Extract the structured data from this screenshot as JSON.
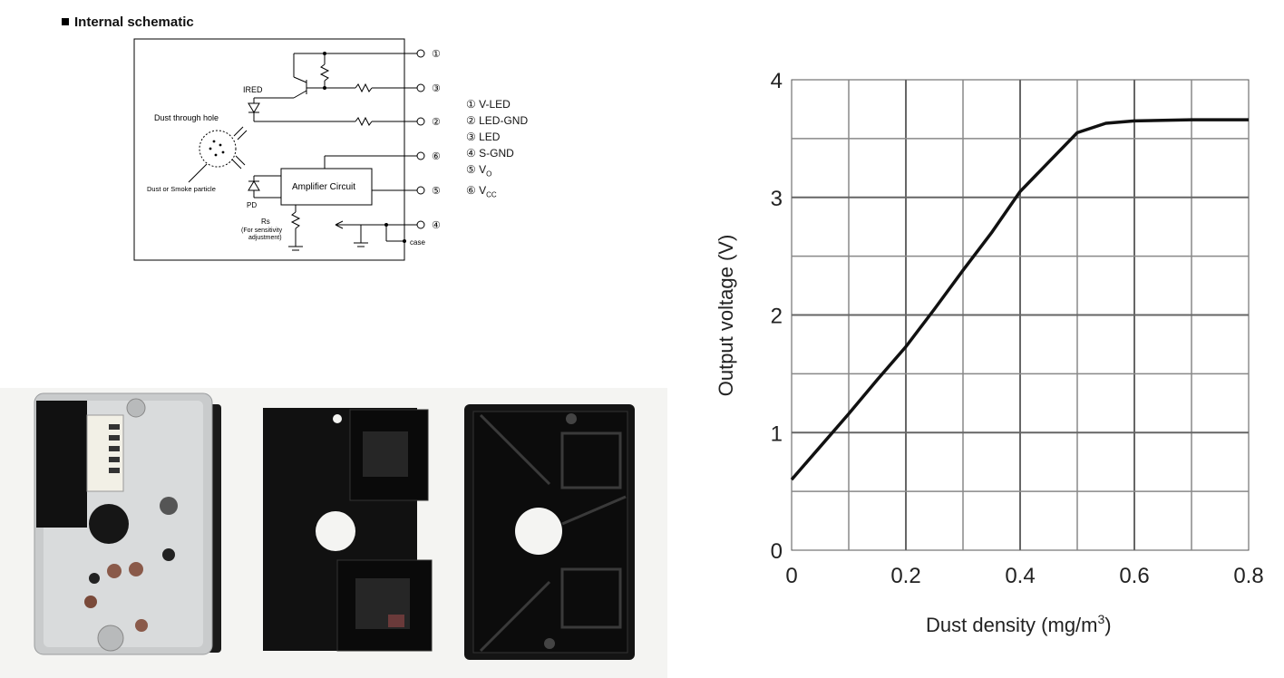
{
  "schematic": {
    "title": "Internal schematic",
    "labels": {
      "ired": "IRED",
      "dust_hole": "Dust through hole",
      "dust_particle": "Dust or Smoke particle",
      "pd": "PD",
      "amplifier": "Amplifier Circuit",
      "rs": "Rs",
      "rs_note1": "(For sensitivity",
      "rs_note2": "adjustment)",
      "case": "case"
    },
    "pin_numbers": [
      "①",
      "③",
      "②",
      "⑥",
      "⑤",
      "④"
    ],
    "pins": [
      {
        "num": "①",
        "name": "V-LED"
      },
      {
        "num": "②",
        "name": "LED-GND"
      },
      {
        "num": "③",
        "name": "LED"
      },
      {
        "num": "④",
        "name": "S-GND"
      },
      {
        "num": "⑤",
        "name": "V",
        "sub": "O"
      },
      {
        "num": "⑥",
        "name": "V",
        "sub": "CC"
      }
    ]
  },
  "chart_data": {
    "type": "line",
    "xlabel": "Dust density (mg/m",
    "xlabel_sup": "3",
    "xlabel_end": ")",
    "ylabel": "Output voltage (V)",
    "xlim": [
      0,
      0.8
    ],
    "ylim": [
      0,
      4
    ],
    "x_ticks": [
      "0",
      "0.2",
      "0.4",
      "0.6",
      "0.8"
    ],
    "y_ticks": [
      "0",
      "1",
      "2",
      "3",
      "4"
    ],
    "grid": true,
    "series": [
      {
        "x": [
          0,
          0.05,
          0.1,
          0.15,
          0.2,
          0.25,
          0.3,
          0.35,
          0.4,
          0.45,
          0.5,
          0.55,
          0.6,
          0.7,
          0.8
        ],
        "y": [
          0.6,
          0.88,
          1.16,
          1.45,
          1.73,
          2.05,
          2.38,
          2.7,
          3.05,
          3.3,
          3.55,
          3.63,
          3.65,
          3.66,
          3.66
        ]
      }
    ]
  }
}
